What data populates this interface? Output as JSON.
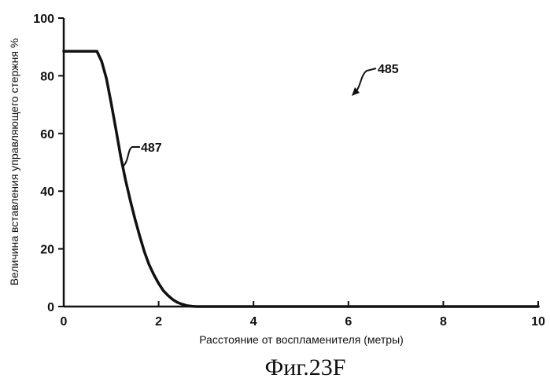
{
  "chart_data": {
    "type": "line",
    "title": "",
    "xlabel": "Расстояние от воспламенителя (метры)",
    "ylabel": "Величина вставления управляющего стержня %",
    "xlim": [
      0,
      10
    ],
    "ylim": [
      0,
      100
    ],
    "xticks": [
      "0",
      "2",
      "4",
      "6",
      "8",
      "10"
    ],
    "yticks": [
      "0",
      "20",
      "40",
      "60",
      "80",
      "100"
    ],
    "grid": false,
    "legend": "none",
    "series": [
      {
        "x": [
          0,
          0.7,
          0.8,
          0.9,
          1.0,
          1.1,
          1.2,
          1.3,
          1.4,
          1.5,
          1.6,
          1.7,
          1.8,
          1.9,
          2.0,
          2.1,
          2.2,
          2.3,
          2.4,
          2.5,
          2.6,
          2.7,
          2.8,
          3.0,
          4.0,
          6.0,
          8.0,
          10.0
        ],
        "y": [
          88.5,
          88.5,
          85,
          79,
          70.5,
          61.5,
          52,
          44,
          37,
          30.5,
          24.5,
          19,
          14.5,
          11,
          8,
          5.5,
          3.8,
          2.4,
          1.4,
          0.8,
          0.3,
          0.1,
          0,
          0,
          0,
          0,
          0,
          0
        ]
      }
    ],
    "annotations": {
      "figure_ref": "485",
      "curve_ref": "487"
    }
  },
  "caption": "Фиг.23F",
  "colors": {
    "line": "#111111",
    "background": "#ffffff"
  }
}
